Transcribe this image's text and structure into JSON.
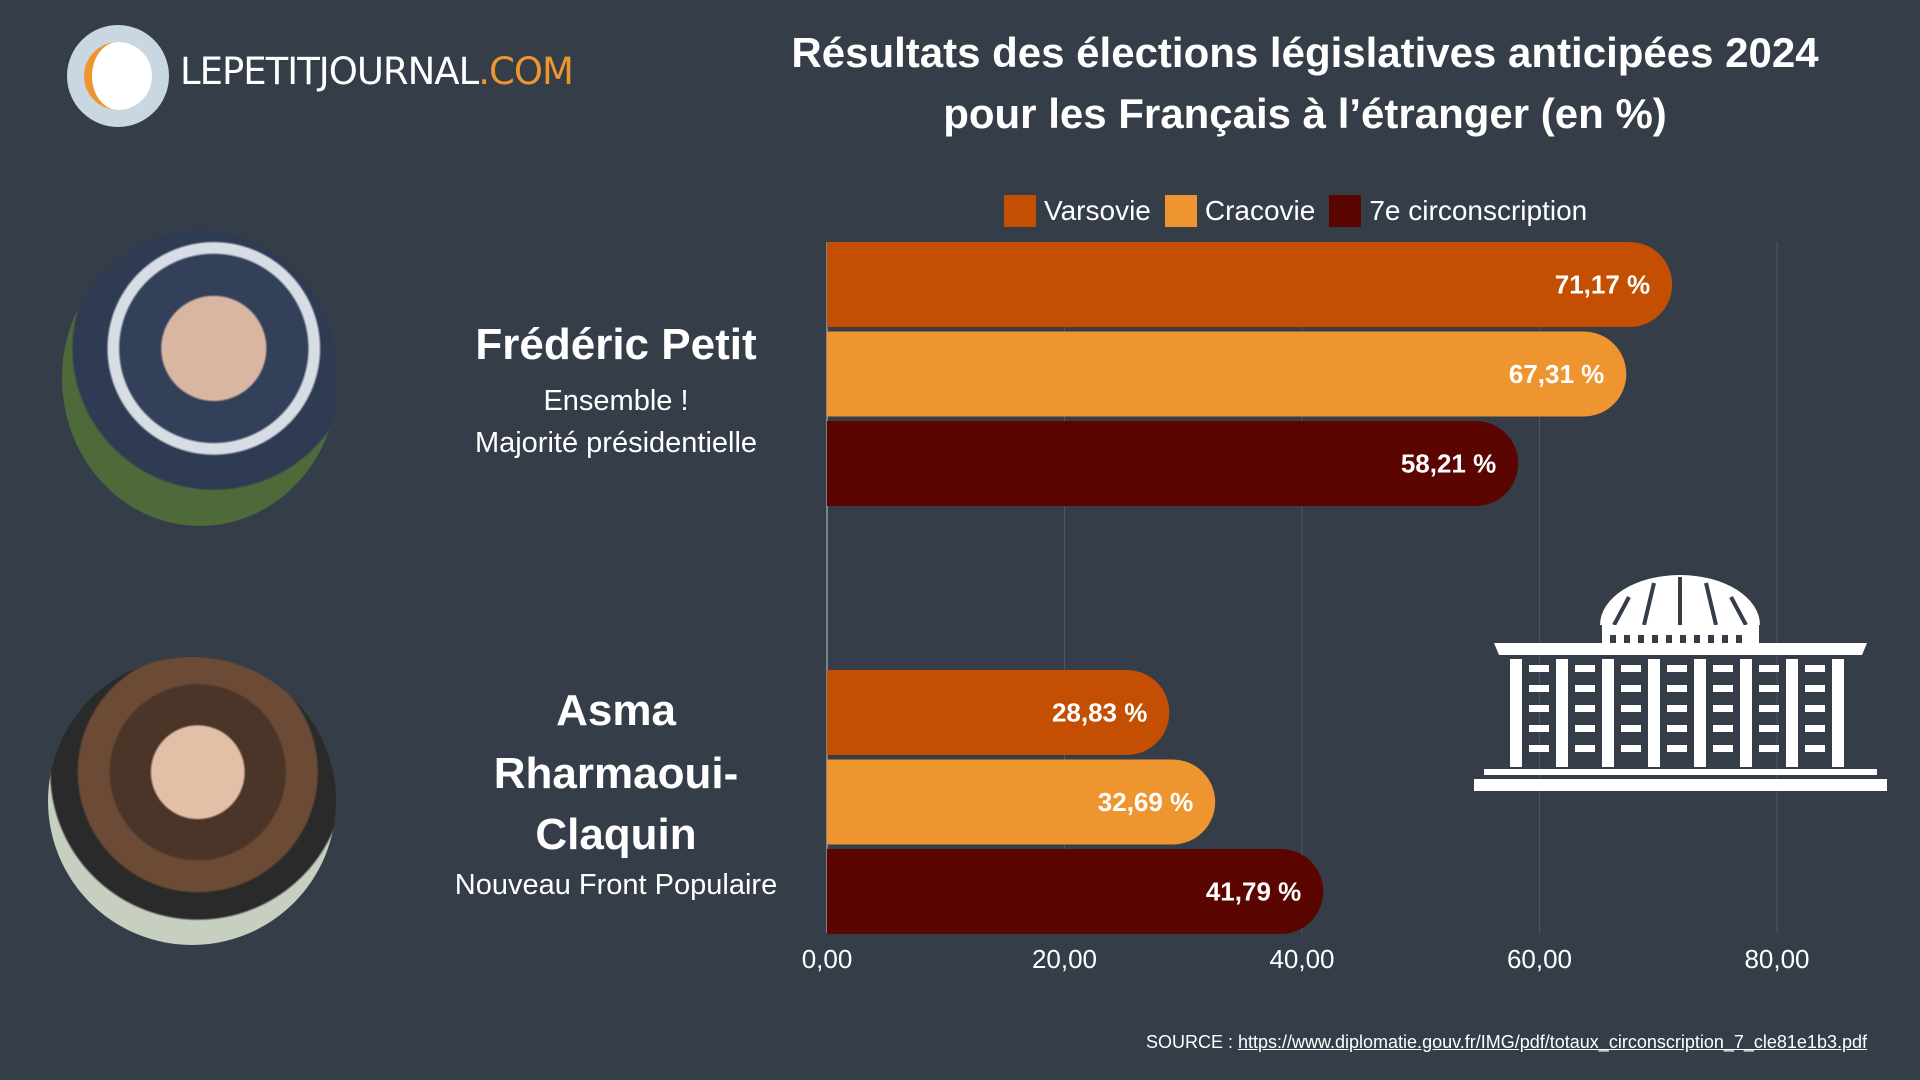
{
  "logo": {
    "text_main": "LEPETITJOURNAL",
    "text_accent": ".COM"
  },
  "title_line1": "Résultats des élections législatives anticipées 2024",
  "title_line2": "pour les Français à l’étranger (en %)",
  "candidates": [
    {
      "name": "Frédéric Petit",
      "party_line1": "Ensemble !",
      "party_line2": "Majorité présidentielle"
    },
    {
      "name_line1": "Asma",
      "name_line2": "Rharmaoui-",
      "name_line3": "Claquin",
      "party_line1": "Nouveau Front Populaire"
    }
  ],
  "source": {
    "label": "SOURCE : ",
    "url": "https://www.diplomatie.gouv.fr/IMG/pdf/totaux_circonscription_7_cle81e1b3.pdf"
  },
  "chart_data": {
    "type": "bar",
    "orientation": "horizontal",
    "categories": [
      "Frédéric Petit",
      "Asma Rharmaoui-Claquin"
    ],
    "series": [
      {
        "name": "Varsovie",
        "color": "#c44f02",
        "values": [
          71.17,
          28.83
        ],
        "labels": [
          "71,17 %",
          "28,83 %"
        ]
      },
      {
        "name": "Cracovie",
        "color": "#ef952f",
        "values": [
          67.31,
          32.69
        ],
        "labels": [
          "67,31 %",
          "32,69 %"
        ]
      },
      {
        "name": "7e circonscription",
        "color": "#5a0500",
        "values": [
          58.21,
          41.79
        ],
        "labels": [
          "58,21 %",
          "41,79 %"
        ]
      }
    ],
    "xlim": [
      0,
      88
    ],
    "xticks": [
      0,
      20,
      40,
      60,
      80
    ],
    "xtick_labels": [
      "0,00",
      "20,00",
      "40,00",
      "60,00",
      "80,00"
    ],
    "grid": true,
    "legend": "top"
  },
  "icons": {
    "building": "parliament-building-icon"
  }
}
